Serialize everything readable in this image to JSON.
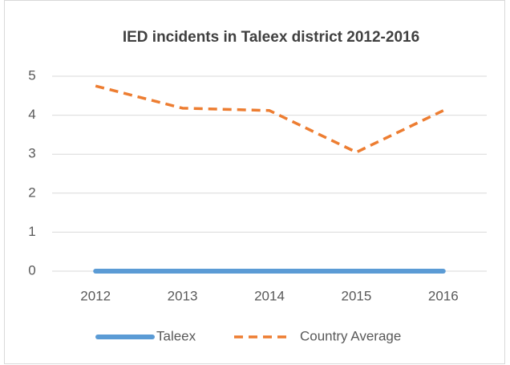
{
  "chart_data": {
    "type": "line",
    "title": "IED incidents in Taleex district 2012-2016",
    "categories": [
      "2012",
      "2013",
      "2014",
      "2015",
      "2016"
    ],
    "series": [
      {
        "name": "Taleex",
        "color": "#5b9bd5",
        "values": [
          0,
          0,
          0,
          0,
          0
        ]
      },
      {
        "name": "Country Average",
        "color": "#ed7d31",
        "values": [
          4.75,
          4.18,
          4.12,
          3.05,
          4.12
        ]
      }
    ],
    "ylim": [
      0,
      5
    ],
    "yticks": [
      0,
      1,
      2,
      3,
      4,
      5
    ],
    "grid": true,
    "legend": "bottom"
  }
}
